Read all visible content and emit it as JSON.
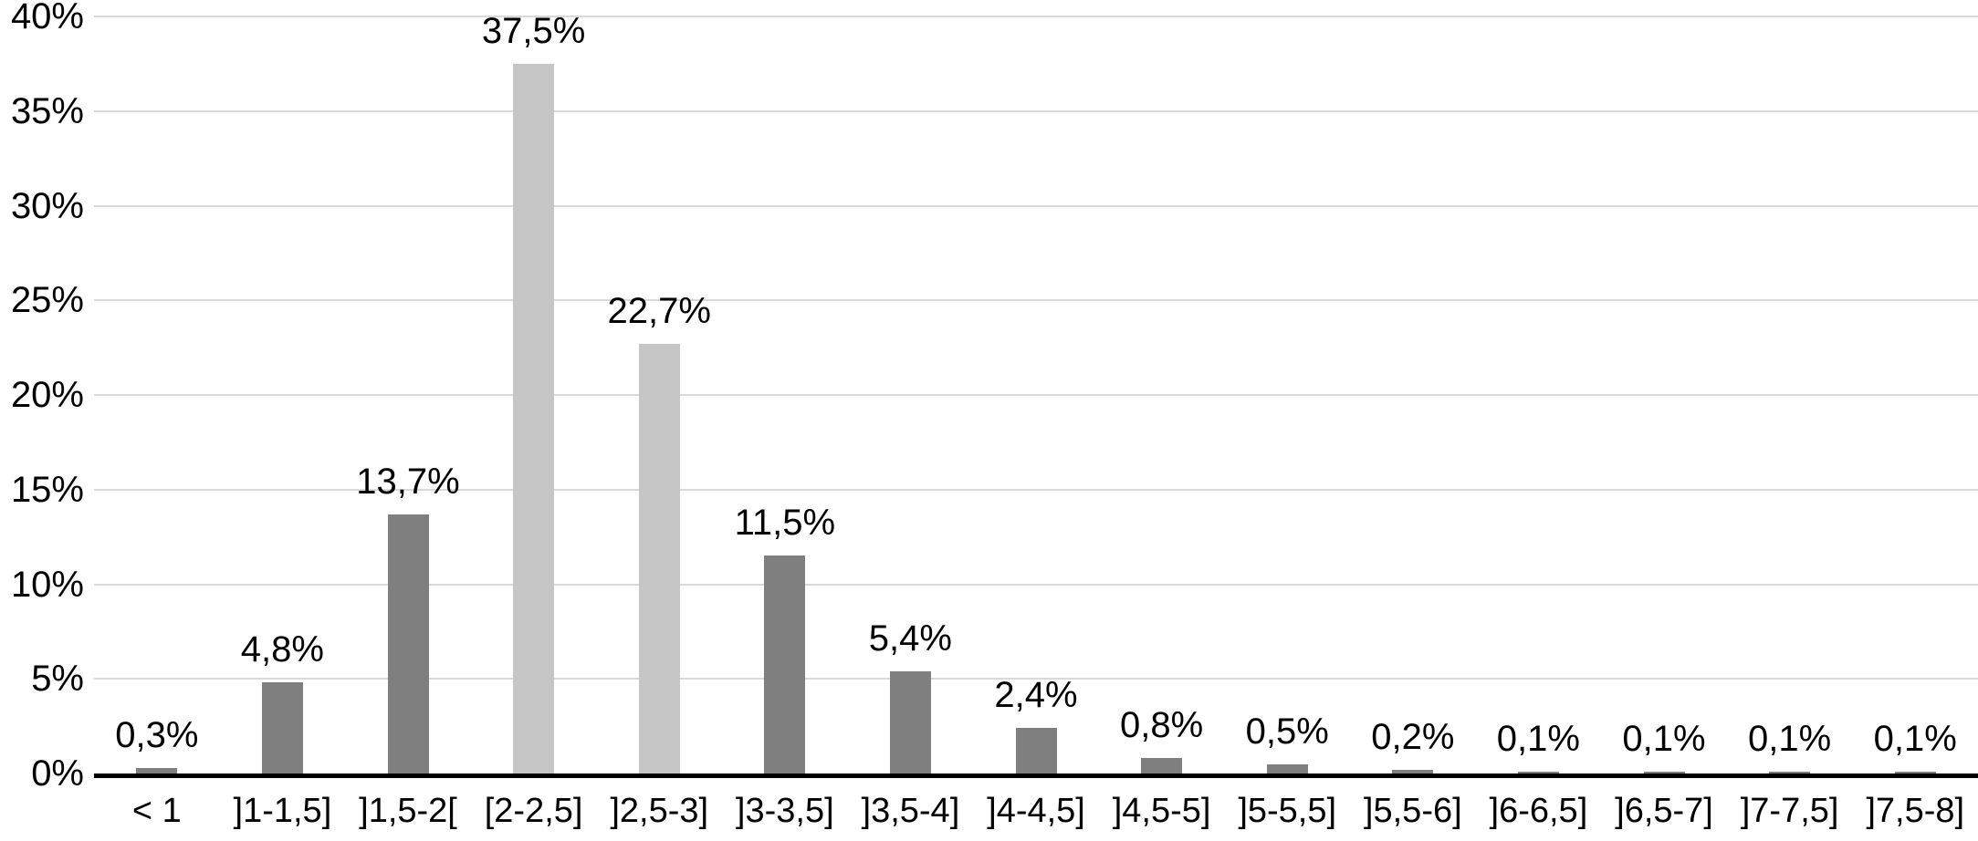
{
  "chart_data": {
    "type": "bar",
    "title": "",
    "xlabel": "",
    "ylabel": "",
    "categories": [
      "< 1",
      "]1-1,5]",
      "]1,5-2[",
      "[2-2,5]",
      "]2,5-3]",
      "]3-3,5]",
      "]3,5-4]",
      "]4-4,5]",
      "]4,5-5]",
      "]5-5,5]",
      "]5,5-6]",
      "]6-6,5]",
      "]6,5-7]",
      "]7-7,5]",
      "]7,5-8]"
    ],
    "values": [
      0.3,
      4.8,
      13.7,
      37.5,
      22.7,
      11.5,
      5.4,
      2.4,
      0.8,
      0.5,
      0.2,
      0.1,
      0.1,
      0.1,
      0.1
    ],
    "value_labels": [
      "0,3%",
      "4,8%",
      "13,7%",
      "37,5%",
      "22,7%",
      "11,5%",
      "5,4%",
      "2,4%",
      "0,8%",
      "0,5%",
      "0,2%",
      "0,1%",
      "0,1%",
      "0,1%",
      "0,1%"
    ],
    "highlighted_indices": [
      3,
      4
    ],
    "y_ticks": [
      "0%",
      "5%",
      "10%",
      "15%",
      "20%",
      "25%",
      "30%",
      "35%",
      "40%"
    ],
    "y_tick_values": [
      0,
      5,
      10,
      15,
      20,
      25,
      30,
      35,
      40
    ],
    "ylim": [
      0,
      40
    ],
    "grid": "horizontal",
    "legend_position": "none",
    "colors": {
      "bar_default": "#7f7f7f",
      "bar_highlight": "#c6c6c6",
      "gridline": "#d9d9d9",
      "axis_line": "#000000",
      "text": "#000000",
      "background": "#ffffff"
    }
  }
}
